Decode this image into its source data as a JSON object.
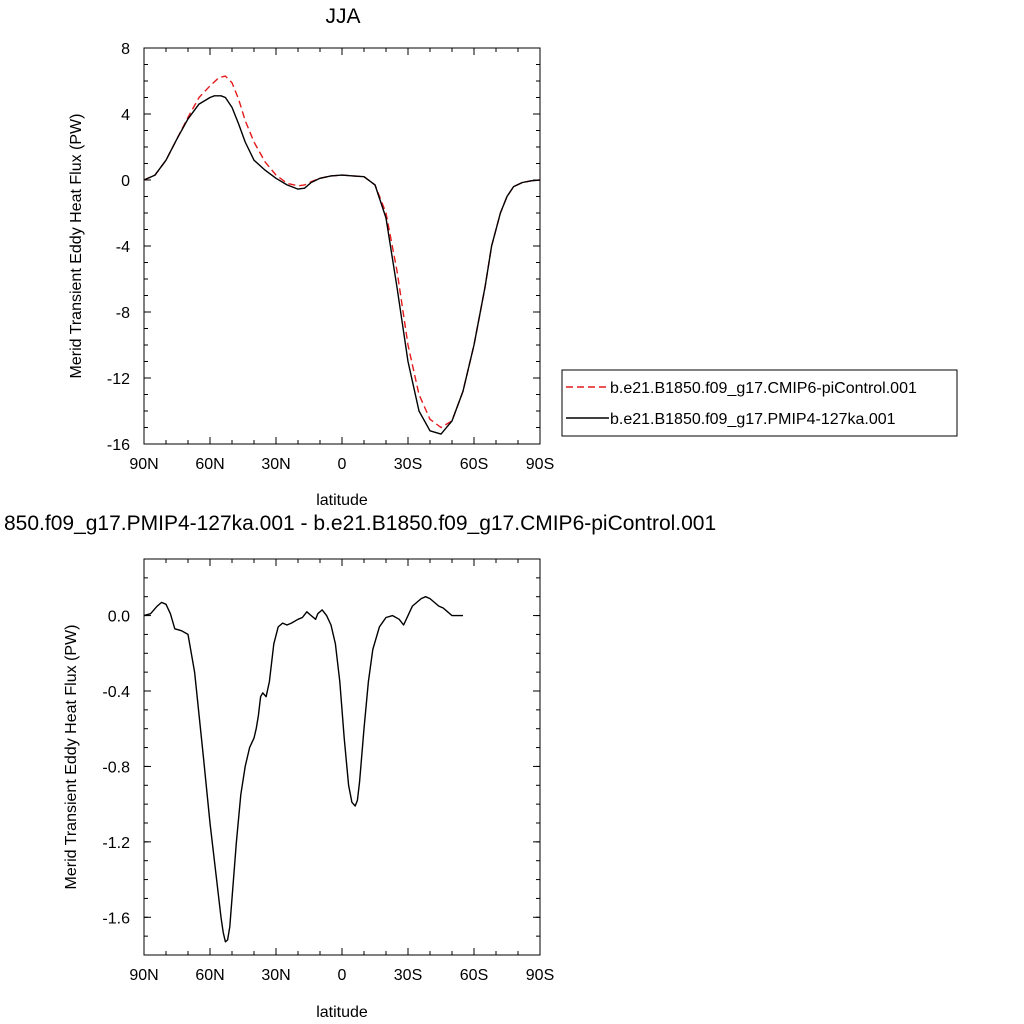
{
  "chart_data": [
    {
      "type": "line",
      "title": "JJA",
      "xlabel": "latitude",
      "ylabel": "Merid Transient Eddy Heat Flux (PW)",
      "xlim": [
        90,
        -90
      ],
      "ylim": [
        -16,
        8
      ],
      "x_ticks": [
        {
          "value": 90,
          "label": "90N"
        },
        {
          "value": 60,
          "label": "60N"
        },
        {
          "value": 30,
          "label": "30N"
        },
        {
          "value": 0,
          "label": "0"
        },
        {
          "value": -30,
          "label": "30S"
        },
        {
          "value": -60,
          "label": "60S"
        },
        {
          "value": -90,
          "label": "90S"
        }
      ],
      "y_ticks": [
        {
          "value": 8,
          "label": "8"
        },
        {
          "value": 4,
          "label": "4"
        },
        {
          "value": 0,
          "label": "0"
        },
        {
          "value": -4,
          "label": "-4"
        },
        {
          "value": -8,
          "label": "-8"
        },
        {
          "value": -12,
          "label": "-12"
        },
        {
          "value": -16,
          "label": "-16"
        }
      ],
      "legend_position": "right",
      "series": [
        {
          "name": "b.e21.B1850.f09_g17.CMIP6-piControl.001",
          "color": "#e41a1c",
          "dash": "dashed",
          "points": [
            [
              90,
              0
            ],
            [
              85,
              0.3
            ],
            [
              80,
              1.2
            ],
            [
              75,
              2.5
            ],
            [
              70,
              3.8
            ],
            [
              65,
              5.0
            ],
            [
              60,
              5.7
            ],
            [
              56,
              6.2
            ],
            [
              53,
              6.3
            ],
            [
              50,
              5.9
            ],
            [
              47,
              4.9
            ],
            [
              44,
              3.6
            ],
            [
              40,
              2.3
            ],
            [
              35,
              1.1
            ],
            [
              30,
              0.3
            ],
            [
              25,
              -0.2
            ],
            [
              20,
              -0.35
            ],
            [
              17,
              -0.3
            ],
            [
              14,
              -0.1
            ],
            [
              10,
              0.1
            ],
            [
              5,
              0.25
            ],
            [
              0,
              0.3
            ],
            [
              -5,
              0.25
            ],
            [
              -10,
              0.2
            ],
            [
              -15,
              -0.3
            ],
            [
              -20,
              -2.0
            ],
            [
              -25,
              -5.5
            ],
            [
              -30,
              -10.0
            ],
            [
              -35,
              -13.0
            ],
            [
              -40,
              -14.5
            ],
            [
              -45,
              -15.0
            ],
            [
              -50,
              -14.6
            ],
            [
              -55,
              -12.8
            ],
            [
              -60,
              -10.0
            ],
            [
              -65,
              -6.5
            ],
            [
              -68,
              -4.0
            ],
            [
              -72,
              -2.0
            ],
            [
              -75,
              -1.0
            ],
            [
              -78,
              -0.4
            ],
            [
              -82,
              -0.15
            ],
            [
              -86,
              -0.05
            ],
            [
              -90,
              0
            ]
          ]
        },
        {
          "name": "b.e21.B1850.f09_g17.PMIP4-127ka.001",
          "color": "#000000",
          "dash": "solid",
          "points": [
            [
              90,
              0
            ],
            [
              85,
              0.3
            ],
            [
              80,
              1.2
            ],
            [
              75,
              2.5
            ],
            [
              70,
              3.7
            ],
            [
              65,
              4.6
            ],
            [
              60,
              5.0
            ],
            [
              58,
              5.1
            ],
            [
              55,
              5.1
            ],
            [
              53,
              5.0
            ],
            [
              50,
              4.4
            ],
            [
              47,
              3.4
            ],
            [
              44,
              2.3
            ],
            [
              40,
              1.2
            ],
            [
              35,
              0.6
            ],
            [
              30,
              0.1
            ],
            [
              25,
              -0.3
            ],
            [
              20,
              -0.55
            ],
            [
              17,
              -0.5
            ],
            [
              14,
              -0.15
            ],
            [
              10,
              0.1
            ],
            [
              5,
              0.25
            ],
            [
              0,
              0.3
            ],
            [
              -5,
              0.25
            ],
            [
              -10,
              0.2
            ],
            [
              -15,
              -0.3
            ],
            [
              -20,
              -2.3
            ],
            [
              -25,
              -6.5
            ],
            [
              -30,
              -11.0
            ],
            [
              -35,
              -14.0
            ],
            [
              -40,
              -15.2
            ],
            [
              -45,
              -15.4
            ],
            [
              -50,
              -14.6
            ],
            [
              -55,
              -12.8
            ],
            [
              -60,
              -10.0
            ],
            [
              -65,
              -6.5
            ],
            [
              -68,
              -4.0
            ],
            [
              -72,
              -2.0
            ],
            [
              -75,
              -1.0
            ],
            [
              -78,
              -0.4
            ],
            [
              -82,
              -0.15
            ],
            [
              -86,
              -0.05
            ],
            [
              -90,
              0
            ]
          ]
        }
      ]
    },
    {
      "type": "line",
      "title": "850.f09_g17.PMIP4-127ka.001 - b.e21.B1850.f09_g17.CMIP6-piControl.001",
      "xlabel": "latitude",
      "ylabel": "Merid Transient Eddy Heat Flux (PW)",
      "xlim": [
        90,
        -90
      ],
      "ylim": [
        -1.8,
        0.3
      ],
      "x_ticks": [
        {
          "value": 90,
          "label": "90N"
        },
        {
          "value": 60,
          "label": "60N"
        },
        {
          "value": 30,
          "label": "30N"
        },
        {
          "value": 0,
          "label": "0"
        },
        {
          "value": -30,
          "label": "30S"
        },
        {
          "value": -60,
          "label": "60S"
        },
        {
          "value": -90,
          "label": "90S"
        }
      ],
      "y_ticks": [
        {
          "value": 0.0,
          "label": "0.0"
        },
        {
          "value": -0.4,
          "label": "-0.4"
        },
        {
          "value": -0.8,
          "label": "-0.8"
        },
        {
          "value": -1.2,
          "label": "-1.2"
        },
        {
          "value": -1.6,
          "label": "-1.6"
        }
      ],
      "series": [
        {
          "color": "#000000",
          "dash": "solid",
          "points": [
            [
              90,
              0
            ],
            [
              87,
              0.01
            ],
            [
              84,
              0.05
            ],
            [
              82,
              0.07
            ],
            [
              80,
              0.06
            ],
            [
              78,
              0.01
            ],
            [
              76,
              -0.07
            ],
            [
              73,
              -0.08
            ],
            [
              70,
              -0.1
            ],
            [
              67,
              -0.3
            ],
            [
              63,
              -0.75
            ],
            [
              60,
              -1.1
            ],
            [
              57,
              -1.4
            ],
            [
              55,
              -1.6
            ],
            [
              54,
              -1.68
            ],
            [
              53,
              -1.73
            ],
            [
              52,
              -1.72
            ],
            [
              51,
              -1.65
            ],
            [
              50,
              -1.5
            ],
            [
              48,
              -1.2
            ],
            [
              46,
              -0.95
            ],
            [
              44,
              -0.8
            ],
            [
              42,
              -0.7
            ],
            [
              40,
              -0.65
            ],
            [
              39,
              -0.6
            ],
            [
              38,
              -0.53
            ],
            [
              37,
              -0.43
            ],
            [
              36,
              -0.41
            ],
            [
              34.5,
              -0.43
            ],
            [
              33,
              -0.35
            ],
            [
              31,
              -0.15
            ],
            [
              29,
              -0.06
            ],
            [
              27,
              -0.04
            ],
            [
              25,
              -0.05
            ],
            [
              23,
              -0.04
            ],
            [
              20,
              -0.02
            ],
            [
              18,
              -0.01
            ],
            [
              16,
              0.02
            ],
            [
              14,
              0.0
            ],
            [
              12,
              -0.02
            ],
            [
              11,
              0.01
            ],
            [
              9,
              0.03
            ],
            [
              7,
              0.0
            ],
            [
              5,
              -0.05
            ],
            [
              3,
              -0.15
            ],
            [
              1,
              -0.35
            ],
            [
              -1,
              -0.65
            ],
            [
              -3,
              -0.9
            ],
            [
              -4.5,
              -0.99
            ],
            [
              -6,
              -1.01
            ],
            [
              -7,
              -0.98
            ],
            [
              -8,
              -0.88
            ],
            [
              -10,
              -0.6
            ],
            [
              -12,
              -0.35
            ],
            [
              -14,
              -0.18
            ],
            [
              -17,
              -0.06
            ],
            [
              -20,
              -0.01
            ],
            [
              -23,
              0.0
            ],
            [
              -26,
              -0.02
            ],
            [
              -28,
              -0.05
            ],
            [
              -30,
              0.0
            ],
            [
              -32,
              0.05
            ],
            [
              -34,
              0.07
            ],
            [
              -36,
              0.09
            ],
            [
              -38,
              0.1
            ],
            [
              -40,
              0.09
            ],
            [
              -42,
              0.07
            ],
            [
              -44,
              0.05
            ],
            [
              -46,
              0.04
            ],
            [
              -48,
              0.02
            ],
            [
              -50,
              0.0
            ],
            [
              -55,
              0.0
            ]
          ]
        }
      ]
    }
  ]
}
